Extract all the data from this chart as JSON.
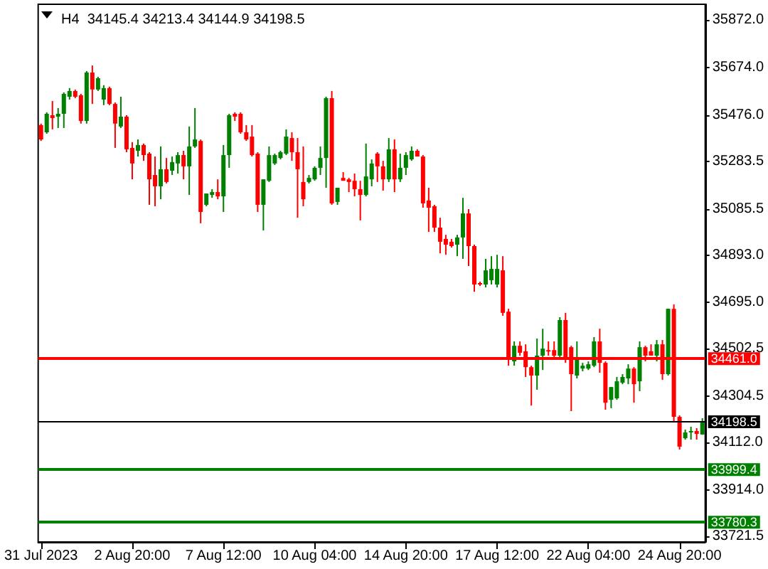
{
  "chart_data": {
    "type": "candlestick",
    "title": "H4  34145.4 34213.4 34144.9 34198.5",
    "categories": [
      "31 Jul 2023",
      null,
      null,
      null,
      null,
      null,
      null,
      null,
      null,
      null,
      null,
      null,
      null,
      null,
      null,
      null,
      "2 Aug 20:00",
      null,
      null,
      null,
      null,
      null,
      null,
      null,
      null,
      null,
      null,
      null,
      null,
      null,
      null,
      null,
      "7 Aug 12:00",
      null,
      null,
      null,
      null,
      null,
      null,
      null,
      null,
      null,
      null,
      null,
      null,
      null,
      null,
      null,
      "10 Aug 04:00",
      null,
      null,
      null,
      null,
      null,
      null,
      null,
      null,
      null,
      null,
      null,
      null,
      null,
      null,
      null,
      "14 Aug 20:00",
      null,
      null,
      null,
      null,
      null,
      null,
      null,
      null,
      null,
      null,
      null,
      null,
      null,
      null,
      null,
      "17 Aug 12:00",
      null,
      null,
      null,
      null,
      null,
      null,
      null,
      null,
      null,
      null,
      null,
      null,
      null,
      null,
      null,
      "22 Aug 04:00",
      null,
      null,
      null,
      null,
      null,
      null,
      null,
      null,
      null,
      null,
      null,
      null,
      null,
      null,
      null,
      "24 Aug 20:00",
      null,
      null,
      null,
      null
    ],
    "ohlc": [
      [
        35434,
        35440,
        35368,
        35374
      ],
      [
        35404,
        35487,
        35398,
        35481
      ],
      [
        35475,
        35534,
        35416,
        35463
      ],
      [
        35469,
        35505,
        35422,
        35481
      ],
      [
        35481,
        35570,
        35422,
        35564
      ],
      [
        35552,
        35588,
        35540,
        35576
      ],
      [
        35576,
        35582,
        35546,
        35552
      ],
      [
        35558,
        35564,
        35440,
        35451
      ],
      [
        35451,
        35659,
        35440,
        35653
      ],
      [
        35653,
        35682,
        35522,
        35582
      ],
      [
        35582,
        35635,
        35576,
        35629
      ],
      [
        35540,
        35600,
        35517,
        35588
      ],
      [
        35588,
        35594,
        35517,
        35522
      ],
      [
        35522,
        35528,
        35339,
        35440
      ],
      [
        35428,
        35552,
        35422,
        35469
      ],
      [
        35469,
        35475,
        35321,
        35333
      ],
      [
        35339,
        35363,
        35208,
        35274
      ],
      [
        35327,
        35374,
        35303,
        35351
      ],
      [
        35351,
        35357,
        35285,
        35309
      ],
      [
        35315,
        35321,
        35102,
        35208
      ],
      [
        35226,
        35303,
        35096,
        35179
      ],
      [
        35179,
        35345,
        35125,
        35250
      ],
      [
        35250,
        35297,
        35191,
        35197
      ],
      [
        35244,
        35303,
        35226,
        35280
      ],
      [
        35274,
        35321,
        35232,
        35309
      ],
      [
        35309,
        35327,
        35208,
        35262
      ],
      [
        35262,
        35428,
        35143,
        35345
      ],
      [
        35345,
        35505,
        35339,
        35374
      ],
      [
        35368,
        35374,
        35025,
        35072
      ],
      [
        35102,
        35149,
        35096,
        35149
      ],
      [
        35143,
        35167,
        35131,
        35155
      ],
      [
        35155,
        35208,
        35125,
        35137
      ],
      [
        35137,
        35351,
        35072,
        35309
      ],
      [
        35309,
        35481,
        35256,
        35475
      ],
      [
        35481,
        35487,
        35451,
        35469
      ],
      [
        35481,
        35487,
        35398,
        35404
      ],
      [
        35404,
        35434,
        35368,
        35374
      ],
      [
        35386,
        35434,
        35303,
        35309
      ],
      [
        35315,
        35321,
        35072,
        35102
      ],
      [
        35102,
        35208,
        34995,
        35208
      ],
      [
        35202,
        35345,
        35197,
        35309
      ],
      [
        35274,
        35315,
        35268,
        35309
      ],
      [
        35297,
        35327,
        35291,
        35321
      ],
      [
        35315,
        35416,
        35309,
        35386
      ],
      [
        35380,
        35404,
        35285,
        35321
      ],
      [
        35321,
        35380,
        35048,
        35250
      ],
      [
        35197,
        35345,
        35096,
        35125
      ],
      [
        35197,
        35226,
        35191,
        35214
      ],
      [
        35208,
        35262,
        35202,
        35256
      ],
      [
        35256,
        35345,
        35226,
        35297
      ],
      [
        35297,
        35552,
        35173,
        35546
      ],
      [
        35546,
        35576,
        35102,
        35108
      ],
      [
        35114,
        35173,
        35102,
        35173
      ],
      [
        35214,
        35238,
        35202,
        35202
      ],
      [
        35208,
        35214,
        35155,
        35197
      ],
      [
        35202,
        35232,
        35137,
        35167
      ],
      [
        35167,
        35202,
        35037,
        35143
      ],
      [
        35143,
        35357,
        35137,
        35220
      ],
      [
        35208,
        35291,
        35179,
        35274
      ],
      [
        35315,
        35321,
        35197,
        35262
      ],
      [
        35262,
        35285,
        35161,
        35208
      ],
      [
        35208,
        35380,
        35197,
        35333
      ],
      [
        35333,
        35374,
        35155,
        35208
      ],
      [
        35208,
        35315,
        35197,
        35256
      ],
      [
        35256,
        35321,
        35226,
        35309
      ],
      [
        35291,
        35345,
        35285,
        35327
      ],
      [
        35327,
        35333,
        35303,
        35303
      ],
      [
        35303,
        35309,
        35090,
        35108
      ],
      [
        35120,
        35173,
        34989,
        35090
      ],
      [
        35096,
        35102,
        34989,
        35007
      ],
      [
        35007,
        35048,
        34900,
        34948
      ],
      [
        34960,
        34977,
        34894,
        34936
      ],
      [
        34948,
        34960,
        34924,
        34930
      ],
      [
        34936,
        34977,
        34888,
        34966
      ],
      [
        34966,
        35131,
        34877,
        35066
      ],
      [
        35066,
        35084,
        34847,
        34930
      ],
      [
        34930,
        34936,
        34740,
        34770
      ],
      [
        34776,
        34782,
        34764,
        34770
      ],
      [
        34770,
        34877,
        34758,
        34829
      ],
      [
        34788,
        34888,
        34770,
        34835
      ],
      [
        34770,
        34894,
        34758,
        34835
      ],
      [
        34829,
        34888,
        34640,
        34652
      ],
      [
        34657,
        34669,
        34432,
        34462
      ],
      [
        34450,
        34533,
        34432,
        34515
      ],
      [
        34515,
        34533,
        34474,
        34486
      ],
      [
        34492,
        34521,
        34385,
        34426
      ],
      [
        34426,
        34432,
        34266,
        34391
      ],
      [
        34391,
        34545,
        34332,
        34474
      ],
      [
        34474,
        34586,
        34414,
        34503
      ],
      [
        34497,
        34533,
        34474,
        34492
      ],
      [
        34497,
        34533,
        34456,
        34474
      ],
      [
        34474,
        34634,
        34456,
        34622
      ],
      [
        34622,
        34652,
        34444,
        34462
      ],
      [
        34509,
        34515,
        34243,
        34397
      ],
      [
        34391,
        34533,
        34379,
        34462
      ],
      [
        34420,
        34444,
        34409,
        34432
      ],
      [
        34420,
        34450,
        34414,
        34438
      ],
      [
        34432,
        34551,
        34426,
        34533
      ],
      [
        34533,
        34586,
        34403,
        34444
      ],
      [
        34444,
        34450,
        34249,
        34278
      ],
      [
        34290,
        34343,
        34255,
        34343
      ],
      [
        34296,
        34385,
        34290,
        34367
      ],
      [
        34361,
        34397,
        34355,
        34385
      ],
      [
        34379,
        34438,
        34355,
        34420
      ],
      [
        34420,
        34426,
        34278,
        34355
      ],
      [
        34367,
        34533,
        34326,
        34509
      ],
      [
        34509,
        34515,
        34450,
        34474
      ],
      [
        34492,
        34521,
        34474,
        34474
      ],
      [
        34474,
        34539,
        34450,
        34521
      ],
      [
        34521,
        34539,
        34373,
        34397
      ],
      [
        34397,
        34669,
        34391,
        34669
      ],
      [
        34669,
        34687,
        34195,
        34219
      ],
      [
        34219,
        34225,
        34083,
        34095
      ],
      [
        34130,
        34166,
        34124,
        34154
      ],
      [
        34154,
        34178,
        34124,
        34160
      ],
      [
        34160,
        34172,
        34124,
        34148
      ],
      [
        34145.4,
        34213.4,
        34144.9,
        34198.5
      ]
    ],
    "ylim": [
      33698,
      35937
    ],
    "yticks": [
      {
        "value": 35872,
        "label": "35872.0"
      },
      {
        "value": 35674,
        "label": "35674.0"
      },
      {
        "value": 35476,
        "label": "35476.0"
      },
      {
        "value": 35283.5,
        "label": "35283.5"
      },
      {
        "value": 35085.5,
        "label": "35085.5"
      },
      {
        "value": 34893,
        "label": "34893.0"
      },
      {
        "value": 34695,
        "label": "34695.0"
      },
      {
        "value": 34502.5,
        "label": "34502.5"
      },
      {
        "value": 34304.5,
        "label": "34304.5"
      },
      {
        "value": 34112,
        "label": "34112.0"
      },
      {
        "value": 33914,
        "label": "33914.0"
      },
      {
        "value": 33721.5,
        "label": "33721.5"
      }
    ],
    "ref_lines": [
      {
        "axis": "y",
        "value": 34461.0,
        "label": "34461.0",
        "color": "#ff0000"
      },
      {
        "axis": "y",
        "value": 34198.5,
        "label": "34198.5",
        "color": "#000000"
      },
      {
        "axis": "y",
        "value": 33999.4,
        "label": "33999.4",
        "color": "#008000"
      },
      {
        "axis": "y",
        "value": 33780.3,
        "label": "33780.3",
        "color": "#008000"
      }
    ]
  }
}
